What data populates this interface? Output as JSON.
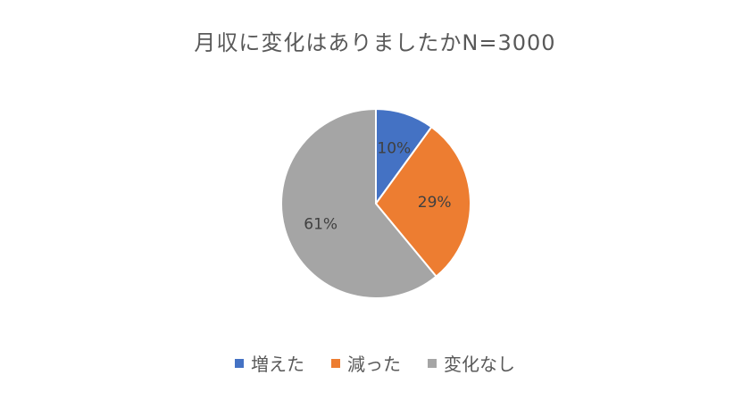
{
  "chart_data": {
    "type": "pie",
    "title": "月収に変化はありましたかN=3000",
    "categories": [
      "増えた",
      "減った",
      "変化なし"
    ],
    "values": [
      10,
      29,
      61
    ],
    "data_labels": [
      "10%",
      "29%",
      "61%"
    ],
    "colors": [
      "#4472c4",
      "#ed7d31",
      "#a5a5a5"
    ],
    "legend_position": "bottom"
  }
}
